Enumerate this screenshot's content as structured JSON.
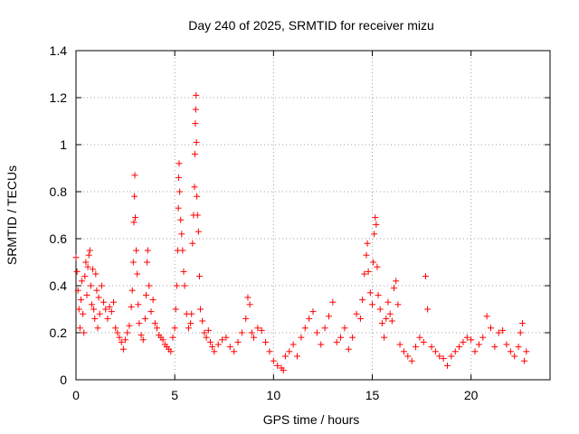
{
  "chart_data": {
    "type": "scatter",
    "title": "Day 240 of 2025, SRMTID for receiver mizu",
    "xlabel": "GPS time / hours",
    "ylabel": "SRMTID / TECUs",
    "xlim": [
      0,
      24
    ],
    "ylim": [
      0,
      1.4
    ],
    "x_ticks": [
      0,
      5,
      10,
      15,
      20
    ],
    "x_tick_labels": [
      "0",
      "5",
      "10",
      "15",
      "20"
    ],
    "y_ticks": [
      0,
      0.2,
      0.4,
      0.6,
      0.8,
      1.0,
      1.2,
      1.4
    ],
    "y_tick_labels": [
      "0",
      "0.2",
      "0.4",
      "0.6",
      "0.8",
      "1",
      "1.2",
      "1.4"
    ],
    "grid": true,
    "marker": "+",
    "color": "#ff0000",
    "series": [
      {
        "name": "SRMTID",
        "points": [
          [
            0.0,
            0.52
          ],
          [
            0.05,
            0.46
          ],
          [
            0.1,
            0.38
          ],
          [
            0.15,
            0.3
          ],
          [
            0.2,
            0.22
          ],
          [
            0.25,
            0.34
          ],
          [
            0.3,
            0.42
          ],
          [
            0.35,
            0.28
          ],
          [
            0.4,
            0.2
          ],
          [
            0.45,
            0.44
          ],
          [
            0.5,
            0.5
          ],
          [
            0.55,
            0.36
          ],
          [
            0.6,
            0.48
          ],
          [
            0.65,
            0.53
          ],
          [
            0.7,
            0.55
          ],
          [
            0.75,
            0.4
          ],
          [
            0.8,
            0.32
          ],
          [
            0.85,
            0.47
          ],
          [
            0.9,
            0.3
          ],
          [
            0.95,
            0.26
          ],
          [
            1.0,
            0.45
          ],
          [
            1.05,
            0.38
          ],
          [
            1.1,
            0.22
          ],
          [
            1.15,
            0.35
          ],
          [
            1.2,
            0.28
          ],
          [
            1.3,
            0.4
          ],
          [
            1.4,
            0.33
          ],
          [
            1.5,
            0.3
          ],
          [
            1.6,
            0.26
          ],
          [
            1.7,
            0.31
          ],
          [
            1.8,
            0.29
          ],
          [
            1.9,
            0.33
          ],
          [
            2.0,
            0.22
          ],
          [
            2.1,
            0.2
          ],
          [
            2.2,
            0.18
          ],
          [
            2.3,
            0.16
          ],
          [
            2.4,
            0.13
          ],
          [
            2.5,
            0.17
          ],
          [
            2.6,
            0.2
          ],
          [
            2.7,
            0.23
          ],
          [
            2.8,
            0.31
          ],
          [
            2.85,
            0.38
          ],
          [
            2.9,
            0.5
          ],
          [
            2.93,
            0.67
          ],
          [
            2.96,
            0.78
          ],
          [
            2.98,
            0.87
          ],
          [
            3.0,
            0.69
          ],
          [
            3.05,
            0.55
          ],
          [
            3.1,
            0.45
          ],
          [
            3.15,
            0.32
          ],
          [
            3.2,
            0.24
          ],
          [
            3.3,
            0.19
          ],
          [
            3.4,
            0.17
          ],
          [
            3.5,
            0.26
          ],
          [
            3.55,
            0.36
          ],
          [
            3.6,
            0.5
          ],
          [
            3.63,
            0.55
          ],
          [
            3.7,
            0.4
          ],
          [
            3.8,
            0.29
          ],
          [
            3.9,
            0.34
          ],
          [
            4.0,
            0.24
          ],
          [
            4.1,
            0.22
          ],
          [
            4.2,
            0.19
          ],
          [
            4.3,
            0.18
          ],
          [
            4.4,
            0.17
          ],
          [
            4.5,
            0.15
          ],
          [
            4.6,
            0.14
          ],
          [
            4.7,
            0.13
          ],
          [
            4.8,
            0.12
          ],
          [
            4.9,
            0.18
          ],
          [
            5.0,
            0.22
          ],
          [
            5.05,
            0.3
          ],
          [
            5.1,
            0.4
          ],
          [
            5.15,
            0.55
          ],
          [
            5.18,
            0.73
          ],
          [
            5.2,
            0.86
          ],
          [
            5.22,
            0.92
          ],
          [
            5.25,
            0.8
          ],
          [
            5.3,
            0.68
          ],
          [
            5.35,
            0.62
          ],
          [
            5.4,
            0.55
          ],
          [
            5.45,
            0.46
          ],
          [
            5.5,
            0.4
          ],
          [
            5.6,
            0.28
          ],
          [
            5.7,
            0.22
          ],
          [
            5.8,
            0.24
          ],
          [
            5.85,
            0.28
          ],
          [
            5.9,
            0.58
          ],
          [
            5.95,
            0.7
          ],
          [
            6.0,
            0.82
          ],
          [
            6.02,
            0.96
          ],
          [
            6.04,
            1.09
          ],
          [
            6.06,
            1.15
          ],
          [
            6.08,
            1.21
          ],
          [
            6.1,
            1.01
          ],
          [
            6.12,
            0.78
          ],
          [
            6.15,
            0.7
          ],
          [
            6.2,
            0.63
          ],
          [
            6.25,
            0.44
          ],
          [
            6.3,
            0.3
          ],
          [
            6.4,
            0.25
          ],
          [
            6.5,
            0.2
          ],
          [
            6.6,
            0.18
          ],
          [
            6.7,
            0.21
          ],
          [
            6.8,
            0.16
          ],
          [
            6.9,
            0.14
          ],
          [
            7.0,
            0.12
          ],
          [
            7.2,
            0.15
          ],
          [
            7.4,
            0.17
          ],
          [
            7.6,
            0.18
          ],
          [
            7.8,
            0.14
          ],
          [
            8.0,
            0.12
          ],
          [
            8.2,
            0.16
          ],
          [
            8.4,
            0.2
          ],
          [
            8.6,
            0.26
          ],
          [
            8.7,
            0.35
          ],
          [
            8.8,
            0.32
          ],
          [
            8.9,
            0.2
          ],
          [
            9.0,
            0.18
          ],
          [
            9.2,
            0.22
          ],
          [
            9.4,
            0.21
          ],
          [
            9.6,
            0.16
          ],
          [
            9.8,
            0.12
          ],
          [
            10.0,
            0.08
          ],
          [
            10.2,
            0.06
          ],
          [
            10.4,
            0.05
          ],
          [
            10.5,
            0.04
          ],
          [
            10.6,
            0.1
          ],
          [
            10.8,
            0.12
          ],
          [
            11.0,
            0.15
          ],
          [
            11.2,
            0.1
          ],
          [
            11.4,
            0.18
          ],
          [
            11.6,
            0.22
          ],
          [
            11.8,
            0.26
          ],
          [
            12.0,
            0.29
          ],
          [
            12.2,
            0.2
          ],
          [
            12.4,
            0.15
          ],
          [
            12.6,
            0.22
          ],
          [
            12.8,
            0.27
          ],
          [
            13.0,
            0.33
          ],
          [
            13.2,
            0.16
          ],
          [
            13.4,
            0.18
          ],
          [
            13.6,
            0.22
          ],
          [
            13.8,
            0.13
          ],
          [
            14.0,
            0.18
          ],
          [
            14.2,
            0.28
          ],
          [
            14.4,
            0.26
          ],
          [
            14.5,
            0.34
          ],
          [
            14.6,
            0.45
          ],
          [
            14.7,
            0.53
          ],
          [
            14.75,
            0.58
          ],
          [
            14.8,
            0.46
          ],
          [
            14.9,
            0.37
          ],
          [
            15.0,
            0.32
          ],
          [
            15.05,
            0.5
          ],
          [
            15.1,
            0.62
          ],
          [
            15.15,
            0.69
          ],
          [
            15.2,
            0.66
          ],
          [
            15.25,
            0.48
          ],
          [
            15.3,
            0.36
          ],
          [
            15.4,
            0.3
          ],
          [
            15.5,
            0.24
          ],
          [
            15.6,
            0.18
          ],
          [
            15.7,
            0.26
          ],
          [
            15.8,
            0.33
          ],
          [
            15.9,
            0.28
          ],
          [
            16.0,
            0.25
          ],
          [
            16.1,
            0.39
          ],
          [
            16.2,
            0.42
          ],
          [
            16.3,
            0.32
          ],
          [
            16.4,
            0.15
          ],
          [
            16.6,
            0.12
          ],
          [
            16.8,
            0.1
          ],
          [
            17.0,
            0.08
          ],
          [
            17.2,
            0.14
          ],
          [
            17.4,
            0.18
          ],
          [
            17.6,
            0.16
          ],
          [
            17.7,
            0.44
          ],
          [
            17.8,
            0.3
          ],
          [
            18.0,
            0.14
          ],
          [
            18.2,
            0.12
          ],
          [
            18.4,
            0.1
          ],
          [
            18.6,
            0.09
          ],
          [
            18.8,
            0.06
          ],
          [
            19.0,
            0.1
          ],
          [
            19.2,
            0.12
          ],
          [
            19.4,
            0.14
          ],
          [
            19.6,
            0.16
          ],
          [
            19.8,
            0.18
          ],
          [
            20.0,
            0.17
          ],
          [
            20.2,
            0.12
          ],
          [
            20.4,
            0.15
          ],
          [
            20.6,
            0.18
          ],
          [
            20.8,
            0.27
          ],
          [
            21.0,
            0.22
          ],
          [
            21.2,
            0.14
          ],
          [
            21.4,
            0.2
          ],
          [
            21.6,
            0.21
          ],
          [
            21.8,
            0.15
          ],
          [
            22.0,
            0.12
          ],
          [
            22.2,
            0.1
          ],
          [
            22.4,
            0.14
          ],
          [
            22.5,
            0.2
          ],
          [
            22.6,
            0.24
          ],
          [
            22.7,
            0.08
          ],
          [
            22.8,
            0.12
          ]
        ]
      }
    ]
  }
}
